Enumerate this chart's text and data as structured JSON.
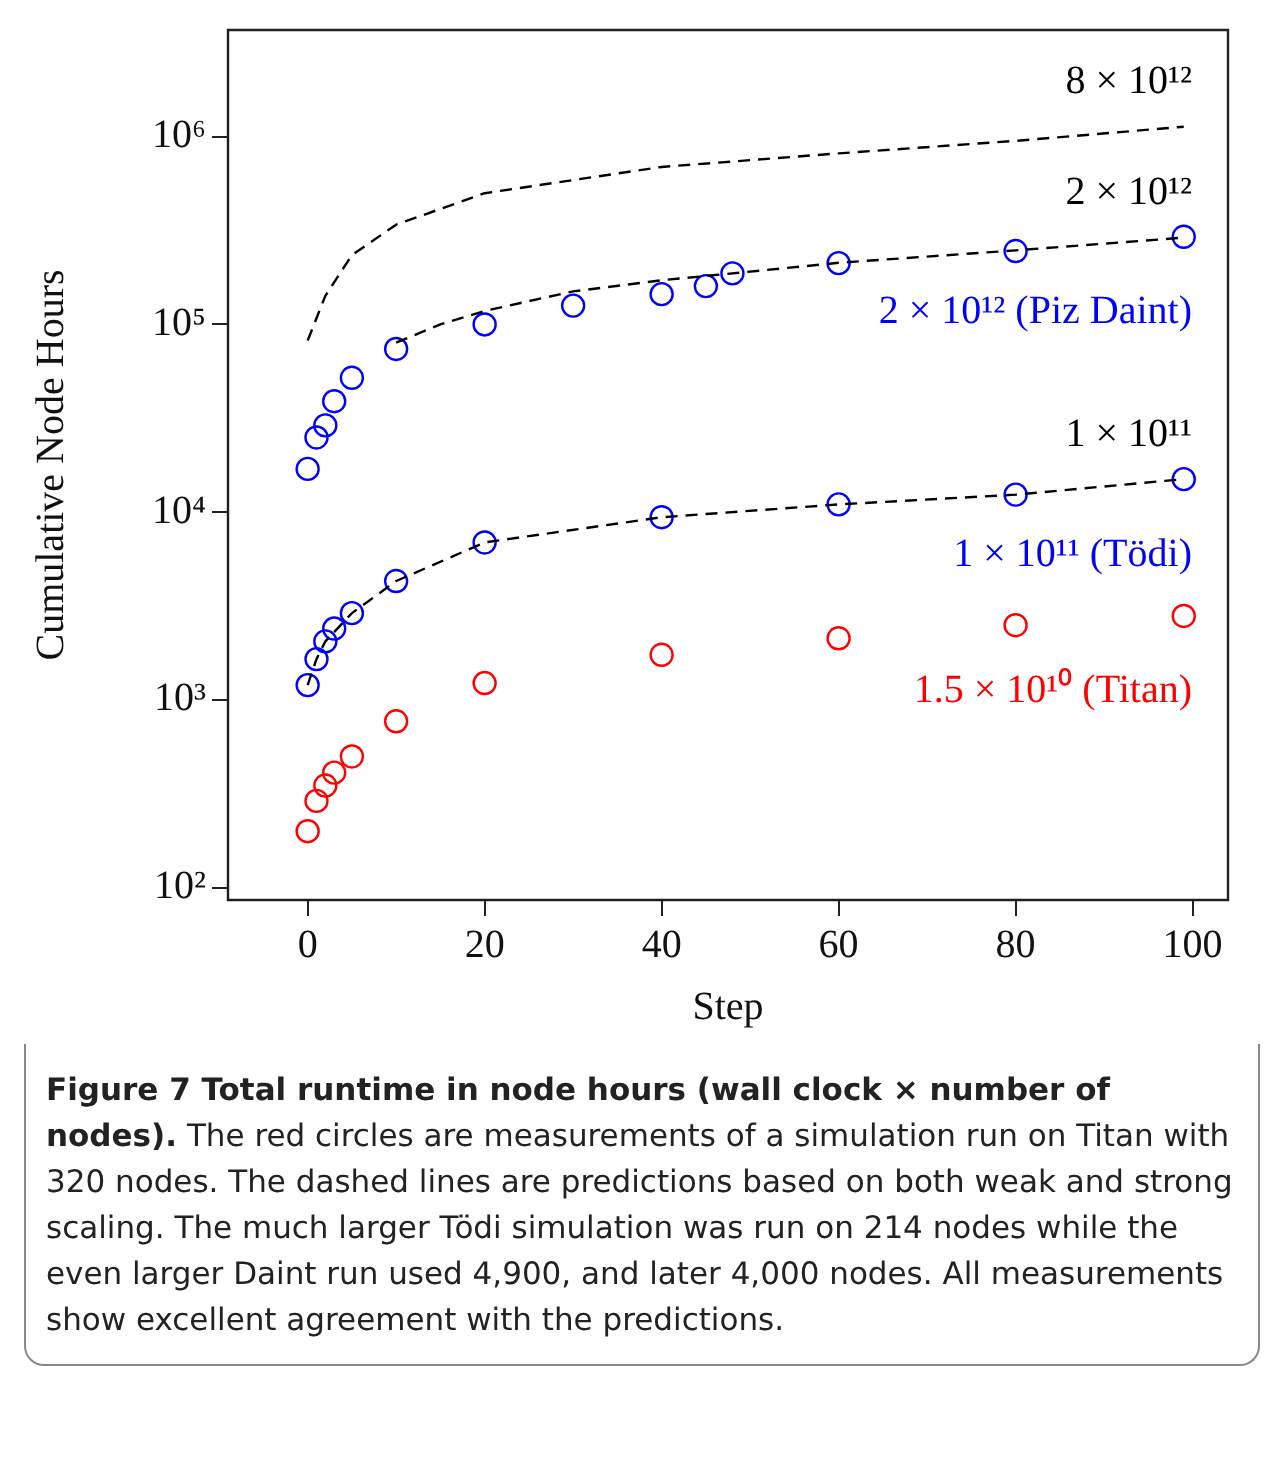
{
  "chart_data": {
    "type": "scatter",
    "title": "Figure 7  Total runtime in node hours (wall clock × number of nodes).",
    "xlabel": "Step",
    "ylabel": "Cumulative Node Hours",
    "annotations": [
      "The red circles are measurements of a simulation run on Titan with 320 nodes. The dashed lines are predictions based on both weak and strong scaling. The much larger Tödi simulation was run on 214 nodes while the even larger Daint run used 4,900, and later 4,000 nodes. All measurements show excellent agreement with the predictions."
    ],
    "log": "y",
    "grid": false,
    "legend": false,
    "xlim": [
      -9,
      104
    ],
    "xticks": [
      0,
      20,
      40,
      60,
      80,
      100
    ],
    "ylim": [
      86,
      3700000
    ],
    "yticks": [
      {
        "value": 100,
        "label": "10²"
      },
      {
        "value": 1000,
        "label": "10³"
      },
      {
        "value": 10000,
        "label": "10⁴"
      },
      {
        "value": 100000,
        "label": "10⁵"
      },
      {
        "value": 1000000,
        "label": "10⁶"
      }
    ],
    "series": [
      {
        "name": "8 × 10¹²",
        "type": "line",
        "line_style": "dashed",
        "marker": "none",
        "color": "#000000",
        "x": [
          0,
          2,
          5,
          10,
          20,
          40,
          60,
          80,
          99
        ],
        "values": [
          82000,
          142000,
          234000,
          340000,
          500000,
          690000,
          815000,
          950000,
          1130000
        ]
      },
      {
        "name": "2 × 10¹²",
        "type": "line",
        "line_style": "dashed",
        "marker": "none",
        "color": "#000000",
        "x": [
          10,
          15,
          20,
          30,
          40,
          47,
          60,
          80,
          99
        ],
        "values": [
          80000,
          100000,
          118000,
          150000,
          172000,
          185000,
          213000,
          248000,
          290000
        ]
      },
      {
        "name": "1 × 10¹¹",
        "type": "line",
        "line_style": "dashed",
        "marker": "none",
        "color": "#000000",
        "x": [
          0,
          1,
          2,
          5,
          10,
          20,
          40,
          60,
          80,
          99
        ],
        "values": [
          1200,
          1650,
          2050,
          2900,
          4300,
          6900,
          9400,
          11000,
          12400,
          15000
        ]
      },
      {
        "name": "2 × 10¹² (Piz Daint)",
        "type": "scatter",
        "marker": "circle",
        "color": "#0000ff",
        "x": [
          0,
          1,
          2,
          3,
          5,
          10,
          20,
          30,
          40,
          45,
          48,
          60,
          80,
          99
        ],
        "values": [
          17000,
          25000,
          29000,
          39000,
          52000,
          74000,
          100000,
          126000,
          145000,
          160000,
          187000,
          212000,
          246000,
          293000
        ]
      },
      {
        "name": "1 × 10¹¹ (Tödi)",
        "type": "scatter",
        "marker": "circle",
        "color": "#0000ff",
        "x": [
          0,
          1,
          2,
          3,
          5,
          10,
          20,
          40,
          60,
          80,
          99
        ],
        "values": [
          1200,
          1650,
          2050,
          2400,
          2900,
          4300,
          6900,
          9400,
          11000,
          12400,
          15000
        ]
      },
      {
        "name": "1.5 × 10¹⁰ (Titan)",
        "type": "scatter",
        "marker": "circle",
        "color": "#ff0000",
        "x": [
          0,
          1,
          2,
          3,
          5,
          10,
          20,
          40,
          60,
          80,
          99
        ],
        "values": [
          200,
          290,
          350,
          410,
          500,
          770,
          1230,
          1740,
          2130,
          2500,
          2800
        ]
      }
    ]
  }
}
